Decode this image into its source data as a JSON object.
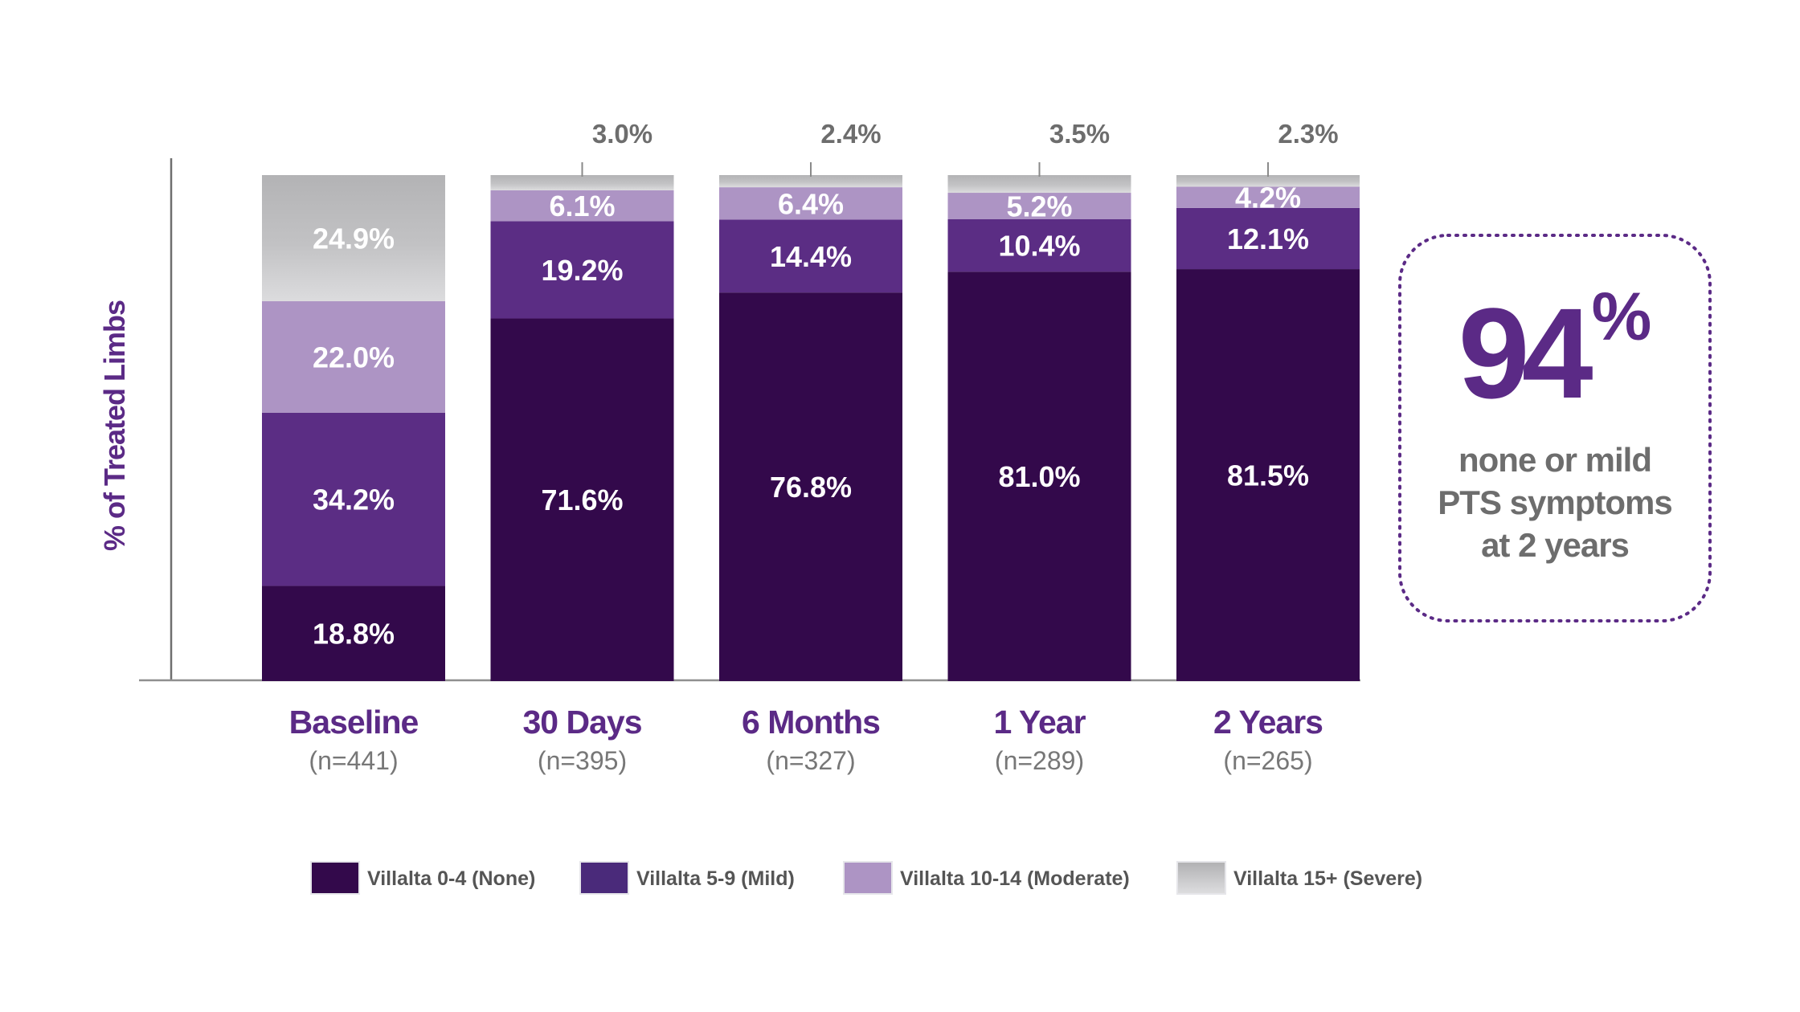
{
  "chart_data": {
    "type": "bar",
    "stacked": true,
    "categories": [
      "Baseline",
      "30 Days",
      "6 Months",
      "1 Year",
      "2 Years"
    ],
    "sample_sizes": [
      "(n=441)",
      "(n=395)",
      "(n=327)",
      "(n=289)",
      "(n=265)"
    ],
    "ylabel": "% of Treated Limbs",
    "ylim": [
      0,
      100
    ],
    "grid": false,
    "legend_position": "bottom",
    "series": [
      {
        "name": "Villalta 0-4 (None)",
        "color": "#33094b",
        "values": [
          18.8,
          71.6,
          76.8,
          81.0,
          81.5
        ],
        "labels": [
          "18.8%",
          "71.6%",
          "76.8%",
          "81.0%",
          "81.5%"
        ]
      },
      {
        "name": "Villalta 5-9 (Mild)",
        "color": "#5b2d84",
        "values": [
          34.2,
          19.2,
          14.4,
          10.4,
          12.1
        ],
        "labels": [
          "34.2%",
          "19.2%",
          "14.4%",
          "10.4%",
          "12.1%"
        ]
      },
      {
        "name": "Villalta 10-14 (Moderate)",
        "color": "#ad94c4",
        "values": [
          22.0,
          6.1,
          6.4,
          5.2,
          4.2
        ],
        "labels": [
          "22.0%",
          "6.1%",
          "6.4%",
          "5.2%",
          "4.2%"
        ]
      },
      {
        "name": "Villalta 15+ (Severe)",
        "color": "#b9b9bb",
        "values": [
          24.9,
          3.0,
          2.4,
          3.5,
          2.3
        ],
        "labels": [
          "24.9%",
          "3.0%",
          "2.4%",
          "3.5%",
          "2.3%"
        ]
      }
    ],
    "callout": {
      "value": "94",
      "unit": "%",
      "lines": [
        "none or mild",
        "PTS symptoms",
        "at 2 years"
      ]
    }
  }
}
